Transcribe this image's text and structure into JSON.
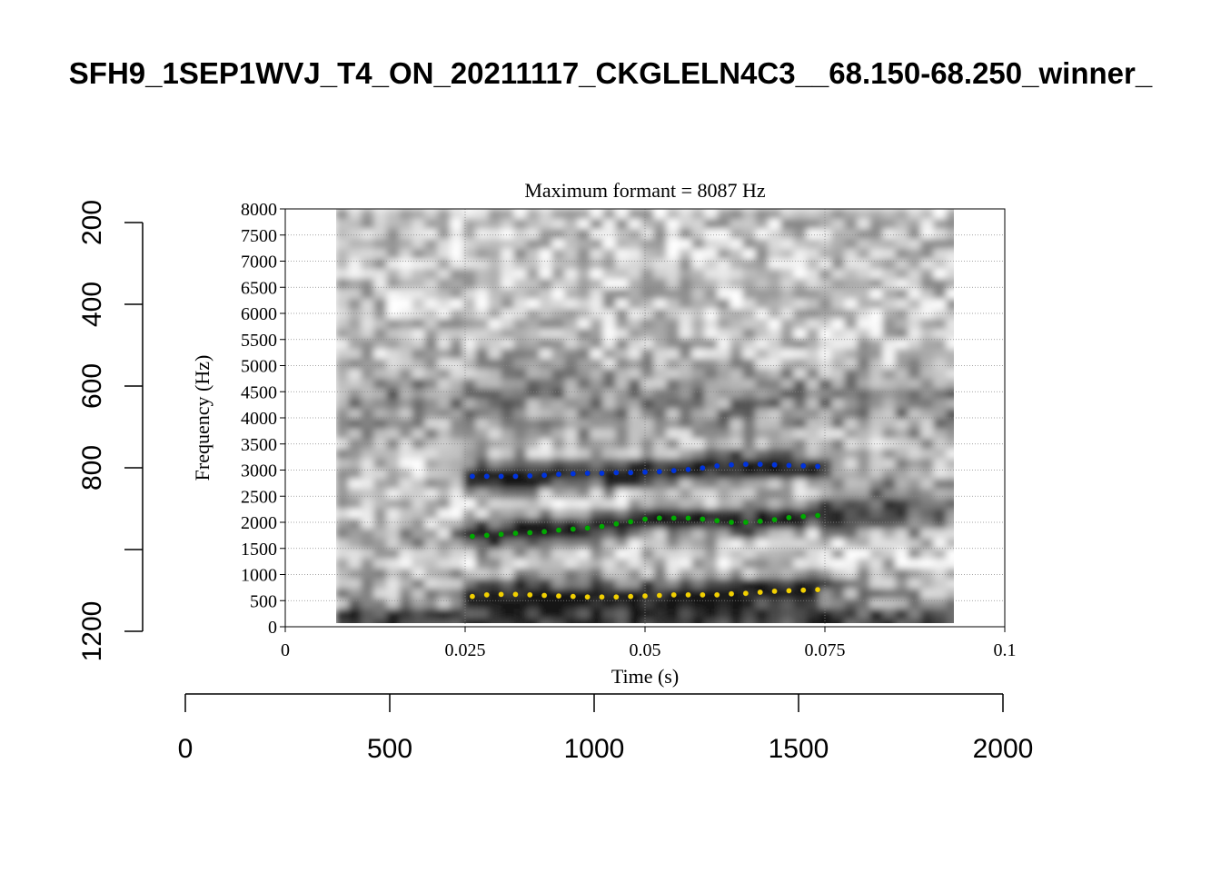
{
  "figure_title": "SFH9_1SEP1WVJ_T4_ON_20211117_CKGLELN4C3__68.150-68.250_winner_",
  "chart_data": [
    {
      "type": "scatter",
      "title": "Maximum formant = 8087 Hz",
      "xlabel": "Time (s)",
      "ylabel": "Frequency (Hz)",
      "xlim": [
        0,
        0.1
      ],
      "ylim": [
        0,
        8000
      ],
      "x_ticks": [
        0,
        0.025,
        0.05,
        0.075,
        0.1
      ],
      "x_tick_labels": [
        "0",
        "0.025",
        "0.05",
        "0.075",
        "0.1"
      ],
      "y_ticks": [
        0,
        500,
        1000,
        1500,
        2000,
        2500,
        3000,
        3500,
        4000,
        4500,
        5000,
        5500,
        6000,
        6500,
        7000,
        7500,
        8000
      ],
      "y_tick_labels": [
        "0",
        "500",
        "1000",
        "1500",
        "2000",
        "2500",
        "3000",
        "3500",
        "4000",
        "4500",
        "5000",
        "5500",
        "6000",
        "6500",
        "7000",
        "7500",
        "8000"
      ],
      "grid": true,
      "background": "grayscale spectrogram",
      "spectrogram_time_range": [
        0.007,
        0.093
      ],
      "series": [
        {
          "color": "#0033dd",
          "x": [
            0.026,
            0.028,
            0.03,
            0.032,
            0.034,
            0.036,
            0.038,
            0.04,
            0.042,
            0.044,
            0.046,
            0.048,
            0.05,
            0.052,
            0.054,
            0.056,
            0.058,
            0.06,
            0.062,
            0.064,
            0.066,
            0.068,
            0.07,
            0.072,
            0.074
          ],
          "y": [
            2880,
            2880,
            2880,
            2880,
            2890,
            2900,
            2920,
            2930,
            2940,
            2940,
            2950,
            2950,
            2960,
            2970,
            2990,
            3010,
            3040,
            3080,
            3100,
            3110,
            3110,
            3100,
            3090,
            3080,
            3070
          ]
        },
        {
          "color": "#00aa00",
          "x": [
            0.026,
            0.028,
            0.03,
            0.032,
            0.034,
            0.036,
            0.038,
            0.04,
            0.042,
            0.044,
            0.046,
            0.048,
            0.05,
            0.052,
            0.054,
            0.056,
            0.058,
            0.06,
            0.062,
            0.064,
            0.066,
            0.068,
            0.07,
            0.072,
            0.074
          ],
          "y": [
            1730,
            1750,
            1770,
            1790,
            1800,
            1820,
            1850,
            1870,
            1890,
            1920,
            1970,
            2010,
            2060,
            2080,
            2080,
            2080,
            2060,
            2030,
            2000,
            2000,
            2020,
            2050,
            2090,
            2110,
            2130
          ]
        },
        {
          "color": "#f2d000",
          "x": [
            0.026,
            0.028,
            0.03,
            0.032,
            0.034,
            0.036,
            0.038,
            0.04,
            0.042,
            0.044,
            0.046,
            0.048,
            0.05,
            0.052,
            0.054,
            0.056,
            0.058,
            0.06,
            0.062,
            0.064,
            0.066,
            0.068,
            0.07,
            0.072,
            0.074
          ],
          "y": [
            580,
            610,
            620,
            620,
            610,
            600,
            590,
            580,
            570,
            570,
            570,
            580,
            590,
            600,
            610,
            610,
            610,
            610,
            630,
            640,
            660,
            680,
            690,
            700,
            710
          ]
        }
      ]
    },
    {
      "type": "axis",
      "orientation": "horizontal",
      "ticks": [
        0,
        500,
        1000,
        1500,
        2000
      ],
      "tick_labels": [
        "0",
        "500",
        "1000",
        "1500",
        "2000"
      ]
    },
    {
      "type": "axis",
      "orientation": "vertical",
      "ticks": [
        200,
        400,
        600,
        800,
        1000,
        1200
      ],
      "tick_labels": [
        "200",
        "400",
        "600",
        "800",
        "",
        "1200"
      ]
    }
  ]
}
